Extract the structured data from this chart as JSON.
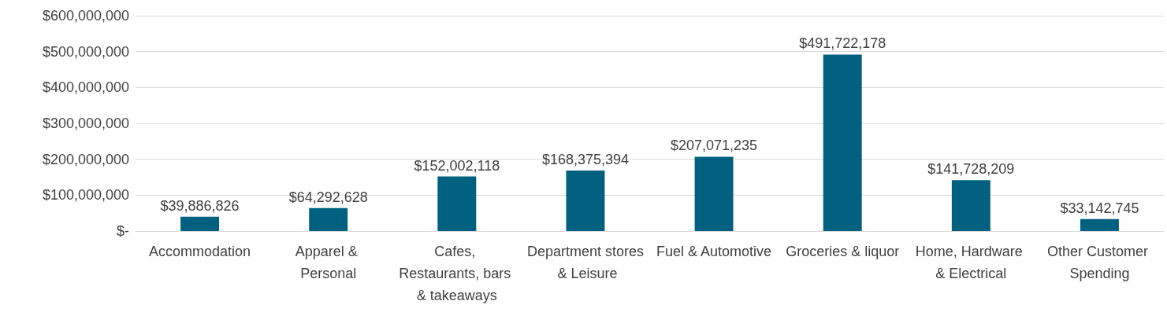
{
  "chart_data": {
    "type": "bar",
    "categories": [
      "Accommodation",
      "Apparel & Personal",
      "Cafes, Restaurants, bars & takeaways",
      "Department stores & Leisure",
      "Fuel & Automotive",
      "Groceries & liquor",
      "Home, Hardware & Electrical",
      "Other Customer Spending"
    ],
    "values": [
      39886826,
      64292628,
      152002118,
      168375394,
      207071235,
      491722178,
      141728209,
      33142745
    ],
    "value_labels": [
      "$39,886,826",
      "$64,292,628",
      "$152,002,118",
      "$168,375,394",
      "$207,071,235",
      "$491,722,178",
      "$141,728,209",
      "$33,142,745"
    ],
    "color": "#006080",
    "ylim": [
      0,
      600000000
    ],
    "yticks": [
      {
        "value": 0,
        "label": "$-"
      },
      {
        "value": 100000000,
        "label": "$100,000,000"
      },
      {
        "value": 200000000,
        "label": "$200,000,000"
      },
      {
        "value": 300000000,
        "label": "$300,000,000"
      },
      {
        "value": 400000000,
        "label": "$400,000,000"
      },
      {
        "value": 500000000,
        "label": "$500,000,000"
      },
      {
        "value": 600000000,
        "label": "$600,000,000"
      }
    ],
    "grid": "y"
  }
}
